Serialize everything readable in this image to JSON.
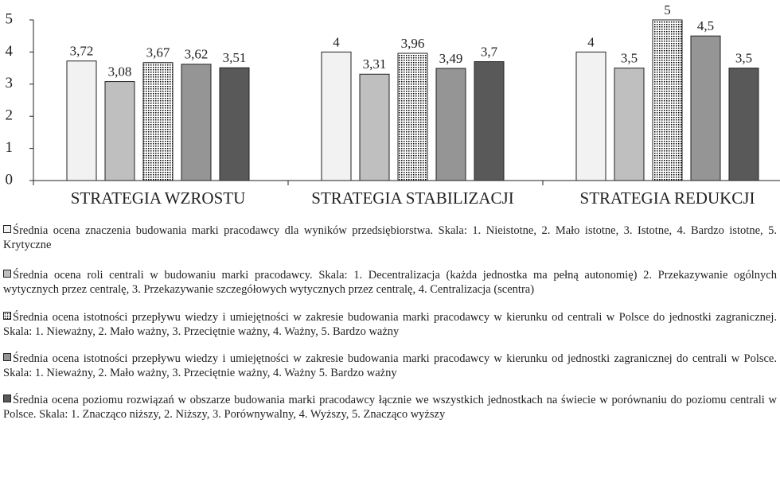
{
  "chart_data": {
    "type": "bar",
    "categories": [
      "STRATEGIA WZROSTU",
      "STRATEGIA STABILIZACJI",
      "STRATEGIA REDUKCJI"
    ],
    "ylim": [
      0,
      5
    ],
    "yticks": [
      0,
      1,
      2,
      3,
      4,
      5
    ],
    "grid": false,
    "series": [
      {
        "name": "Średnia ocena znaczenia budowania marki pracodawcy dla wyników przedsiębiorstwa. Skala: 1. Nieistotne, 2. Mało istotne, 3. Istotne, 4. Bardzo istotne, 5. Krytyczne",
        "color": "#f2f2f2",
        "values": [
          3.72,
          4,
          4
        ],
        "value_labels": [
          "3,72",
          "4",
          "4"
        ]
      },
      {
        "name": "Średnia ocena roli centrali w budowaniu marki pracodawcy. Skala: 1. Decentralizacja (każda jednostka ma pełną autonomię) 2. Przekazywanie ogólnych wytycznych przez centralę, 3. Przekazywanie szczegółowych wytycznych przez centralę, 4. Centralizacja (scentra)",
        "color": "#bfbfbf",
        "values": [
          3.08,
          3.31,
          3.5
        ],
        "value_labels": [
          "3,08",
          "3,31",
          "3,5"
        ]
      },
      {
        "name": "Średnia ocena  istotności przepływu wiedzy i umiejętności w zakresie budowania marki pracodawcy w kierunku od centrali w Polsce do jednostki zagranicznej. Skala: 1. Nieważny, 2. Mało ważny, 3. Przeciętnie ważny, 4. Ważny, 5. Bardzo ważny",
        "color": "#000000",
        "pattern": "dots",
        "values": [
          3.67,
          3.96,
          5
        ],
        "value_labels": [
          "3,67",
          "3,96",
          "5"
        ]
      },
      {
        "name": "Średnia ocena  istotności przepływu wiedzy i umiejętności w zakresie budowania marki pracodawcy w kierunku od jednostki zagranicznej do centrali w Polsce. Skala: 1. Nieważny, 2. Mało ważny, 3. Przeciętnie ważny, 4. Ważny 5. Bardzo ważny",
        "color": "#959595",
        "values": [
          3.62,
          3.49,
          4.5
        ],
        "value_labels": [
          "3,62",
          "3,49",
          "4,5"
        ]
      },
      {
        "name": "Średnia ocena  poziomu rozwiązań w obszarze budowania marki pracodawcy łącznie we wszystkich jednostkach na świecie w porównaniu do poziomu centrali w Polsce. Skala: 1. Znacząco niższy, 2. Niższy, 3. Porównywalny, 4. Wyższy, 5. Znacząco wyższy",
        "color": "#595959",
        "values": [
          3.51,
          3.7,
          3.5
        ],
        "value_labels": [
          "3,51",
          "3,7",
          "3,5"
        ]
      }
    ]
  }
}
